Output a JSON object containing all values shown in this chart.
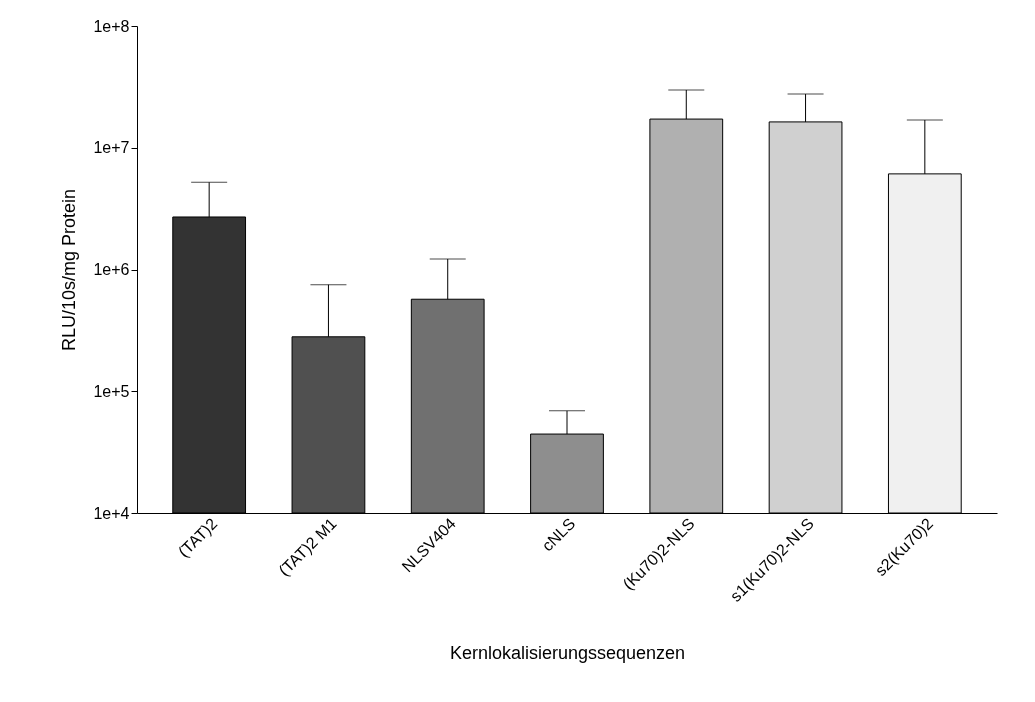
{
  "chart_data": {
    "type": "bar",
    "xlabel": "Kernlokalisierungssequenzen",
    "ylabel": "RLU/10s/mg Protein",
    "categories": [
      "(TAT)2",
      "(TAT)2 M1",
      "NLSV404",
      "cNLS",
      "(Ku70)2-NLS",
      "s1(Ku70)2-NLS",
      "s2(Ku70)2"
    ],
    "values": [
      2700000,
      280000,
      570000,
      44500,
      17200000,
      16300000,
      6100000
    ],
    "errors": [
      [
        2700000,
        5200000
      ],
      [
        280000,
        750000
      ],
      [
        570000,
        1220000
      ],
      [
        44500,
        69000
      ],
      [
        17200000,
        29800000
      ],
      [
        16300000,
        27600000
      ],
      [
        6100000,
        16900000
      ]
    ],
    "colors": [
      "#333333",
      "#505050",
      "#707070",
      "#8e8e8e",
      "#b0b0b0",
      "#d0d0d0",
      "#f0f0f0"
    ],
    "log": "y",
    "ylim": [
      10000,
      100000000
    ],
    "yticks": [
      {
        "value": 10000,
        "label": "1e+4"
      },
      {
        "value": 100000,
        "label": "1e+5"
      },
      {
        "value": 1000000,
        "label": "1e+6"
      },
      {
        "value": 10000000,
        "label": "1e+7"
      },
      {
        "value": 100000000,
        "label": "1e+8"
      }
    ],
    "grid": false
  }
}
